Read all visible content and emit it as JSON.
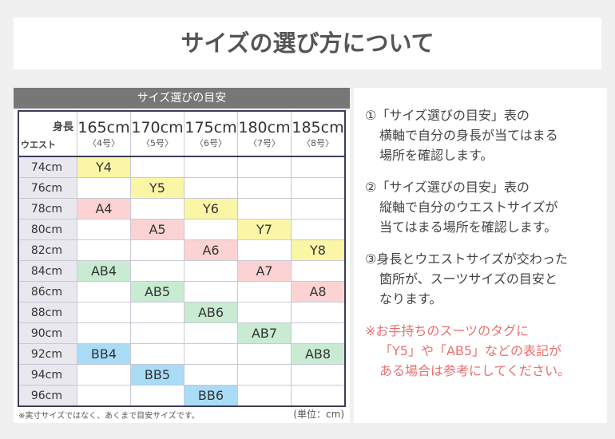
{
  "header": {
    "title": "サイズの選び方について"
  },
  "table": {
    "title": "サイズ選びの目安",
    "corner_top": "身長",
    "corner_bottom": "ウエスト",
    "columns": [
      {
        "height": "165cm",
        "size": "〈4号〉"
      },
      {
        "height": "170cm",
        "size": "〈5号〉"
      },
      {
        "height": "175cm",
        "size": "〈6号〉"
      },
      {
        "height": "180cm",
        "size": "〈7号〉"
      },
      {
        "height": "185cm",
        "size": "〈8号〉"
      }
    ],
    "rows": [
      {
        "waist": "74cm",
        "cells": [
          {
            "label": "Y4",
            "color": "#fbf6a6"
          },
          null,
          null,
          null,
          null
        ]
      },
      {
        "waist": "76cm",
        "cells": [
          null,
          {
            "label": "Y5",
            "color": "#fbf6a6"
          },
          null,
          null,
          null
        ]
      },
      {
        "waist": "78cm",
        "cells": [
          {
            "label": "A4",
            "color": "#fbd3d3"
          },
          null,
          {
            "label": "Y6",
            "color": "#fbf6a6"
          },
          null,
          null
        ]
      },
      {
        "waist": "80cm",
        "cells": [
          null,
          {
            "label": "A5",
            "color": "#fbd3d3"
          },
          null,
          {
            "label": "Y7",
            "color": "#fbf6a6"
          },
          null
        ]
      },
      {
        "waist": "82cm",
        "cells": [
          null,
          null,
          {
            "label": "A6",
            "color": "#fbd3d3"
          },
          null,
          {
            "label": "Y8",
            "color": "#fbf6a6"
          }
        ]
      },
      {
        "waist": "84cm",
        "cells": [
          {
            "label": "AB4",
            "color": "#c8ebd2"
          },
          null,
          null,
          {
            "label": "A7",
            "color": "#fbd3d3"
          },
          null
        ]
      },
      {
        "waist": "86cm",
        "cells": [
          null,
          {
            "label": "AB5",
            "color": "#c8ebd2"
          },
          null,
          null,
          {
            "label": "A8",
            "color": "#fbd3d3"
          }
        ]
      },
      {
        "waist": "88cm",
        "cells": [
          null,
          null,
          {
            "label": "AB6",
            "color": "#c8ebd2"
          },
          null,
          null
        ]
      },
      {
        "waist": "90cm",
        "cells": [
          null,
          null,
          null,
          {
            "label": "AB7",
            "color": "#c8ebd2"
          },
          null
        ]
      },
      {
        "waist": "92cm",
        "cells": [
          {
            "label": "BB4",
            "color": "#a9dcf7"
          },
          null,
          null,
          null,
          {
            "label": "AB8",
            "color": "#c8ebd2"
          }
        ]
      },
      {
        "waist": "94cm",
        "cells": [
          null,
          {
            "label": "BB5",
            "color": "#a9dcf7"
          },
          null,
          null,
          null
        ]
      },
      {
        "waist": "96cm",
        "cells": [
          null,
          null,
          {
            "label": "BB6",
            "color": "#a9dcf7"
          },
          null,
          null
        ]
      }
    ],
    "footnote": "※実寸サイズではなく、あくまで目安サイズです。",
    "unit": "(単位：cm)"
  },
  "guide": {
    "paragraphs": [
      {
        "lines": [
          "①「サイズ選びの目安」表の",
          "横軸で自分の身長が当てはまる",
          "場所を確認します。"
        ]
      },
      {
        "lines": [
          "②「サイズ選びの目安」表の",
          "縦軸で自分のウエストサイズが",
          "当てはまる場所を確認します。"
        ]
      },
      {
        "lines": [
          "③身長とウエストサイズが交わった",
          "箇所が、スーツサイズの目安と",
          "なります。"
        ]
      }
    ],
    "note": {
      "lines": [
        "※お手持ちのスーツのタグに",
        "「Y5」や「AB5」などの表記が",
        "ある場合は参考にしてください。"
      ],
      "color": "#e9706f"
    }
  }
}
